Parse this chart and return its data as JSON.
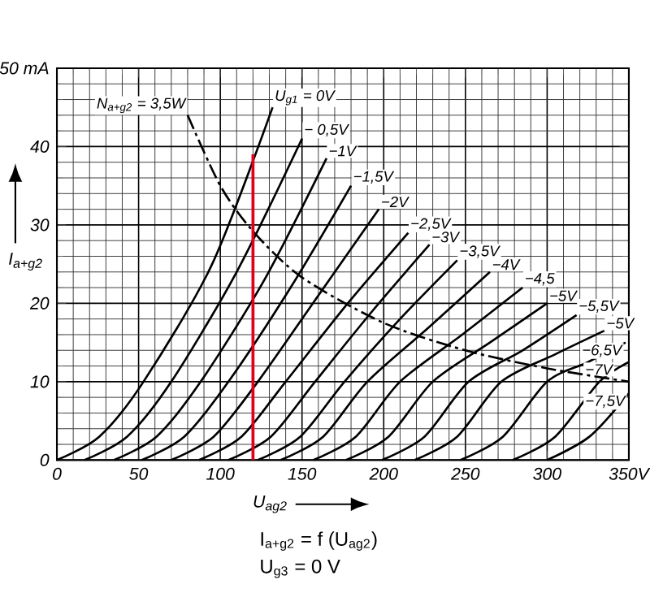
{
  "chart_data": {
    "type": "line",
    "xlabel": "U$_{ag2}$",
    "ylabel": "I$_{a+g2}$",
    "xlim": [
      0,
      350
    ],
    "ylim": [
      0,
      50
    ],
    "xticks": [
      0,
      50,
      100,
      150,
      200,
      250,
      300,
      {
        "value": 350,
        "label": "350V"
      }
    ],
    "yticks": [
      0,
      10,
      20,
      30,
      40,
      {
        "value": 50,
        "label": "50 mA"
      }
    ],
    "grid": true,
    "legend": false,
    "marker": "none",
    "line_style": "solid",
    "series": [
      {
        "name": "U$_{g1}$ = 0V",
        "color": "#000000",
        "x": [
          0,
          26,
          53,
          95,
          132
        ],
        "values": [
          0,
          3,
          10,
          25,
          45
        ]
      },
      {
        "name": "− 0,5V",
        "color": "#000000",
        "x": [
          17,
          43,
          70,
          110,
          150
        ],
        "values": [
          0,
          3,
          10,
          24,
          41
        ]
      },
      {
        "name": "−1V",
        "color": "#000000",
        "x": [
          35,
          61,
          88,
          127,
          165
        ],
        "values": [
          0,
          3,
          10,
          23,
          38.5
        ]
      },
      {
        "name": "−1,5V",
        "color": "#000000",
        "x": [
          52,
          78,
          105,
          143,
          180
        ],
        "values": [
          0,
          3,
          10,
          22,
          35
        ]
      },
      {
        "name": "−2V",
        "color": "#000000",
        "x": [
          70,
          96,
          123,
          160,
          197
        ],
        "values": [
          0,
          3,
          10,
          21,
          32
        ]
      },
      {
        "name": "−2,5V",
        "color": "#000000",
        "x": [
          87,
          113,
          140,
          178,
          215
        ],
        "values": [
          0,
          3,
          10,
          20,
          29
        ]
      },
      {
        "name": "−3V",
        "color": "#000000",
        "x": [
          105,
          131,
          158,
          193,
          228
        ],
        "values": [
          0,
          3,
          10,
          19,
          27.5
        ]
      },
      {
        "name": "−3,5V",
        "color": "#000000",
        "x": [
          123,
          149,
          176,
          210,
          245
        ],
        "values": [
          0,
          3,
          10,
          18,
          25.5
        ]
      },
      {
        "name": "−4V",
        "color": "#000000",
        "x": [
          137,
          163,
          190,
          228,
          265
        ],
        "values": [
          0,
          3,
          10,
          17,
          24
        ]
      },
      {
        "name": "−4,5",
        "color": "#000000",
        "x": [
          157,
          183,
          210,
          248,
          285
        ],
        "values": [
          0,
          3,
          10,
          16,
          22
        ]
      },
      {
        "name": "−5V",
        "color": "#000000",
        "x": [
          177,
          203,
          230,
          265,
          300
        ],
        "values": [
          0,
          3,
          10,
          15,
          20
        ]
      },
      {
        "name": "−5,5V",
        "color": "#000000",
        "x": [
          199,
          225,
          252,
          285,
          318
        ],
        "values": [
          0,
          3,
          10,
          14,
          18.5
        ]
      },
      {
        "name": "−5V",
        "color": "#000000",
        "x": [
          219,
          245,
          272,
          305,
          335
        ],
        "values": [
          0,
          3,
          10,
          13.5,
          16.5
        ]
      },
      {
        "name": "−6,5V",
        "color": "#000000",
        "x": [
          247,
          273,
          300,
          325,
          348
        ],
        "values": [
          0,
          3,
          10,
          12.5,
          15
        ]
      },
      {
        "name": "−7V",
        "color": "#000000",
        "x": [
          279,
          305,
          332,
          350
        ],
        "values": [
          0,
          3,
          10,
          12.5
        ]
      },
      {
        "name": "−7,5V",
        "color": "#000000",
        "x": [
          300,
          326,
          350
        ],
        "values": [
          0,
          3,
          8.5
        ]
      },
      {
        "name": "N$_{a+g2}$ = 3,5W",
        "color": "#000000",
        "line_style": "dashed",
        "x": [
          80,
          100,
          120,
          150,
          200,
          250,
          300,
          350
        ],
        "values": [
          44,
          35,
          29.2,
          23.3,
          17.5,
          14,
          11.7,
          10
        ]
      },
      {
        "color": "#e0001a",
        "x": [
          120,
          120
        ],
        "values": [
          0,
          39
        ]
      }
    ],
    "annotations": [
      "I$_{a+g2}$ = f (U$_{ag2}$)",
      "U$_{g3}$ = 0 V"
    ]
  }
}
